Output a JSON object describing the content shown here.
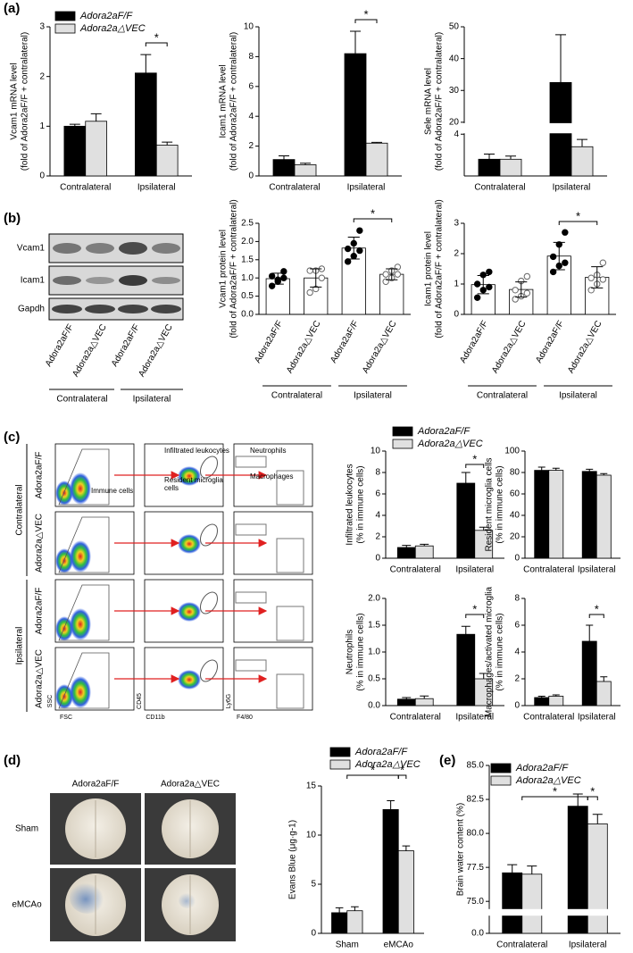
{
  "panel_labels": [
    "(a)",
    "(b)",
    "(c)",
    "(d)",
    "(e)"
  ],
  "chart_data": [
    {
      "type": "bar",
      "ylabel": [
        "Vcam1 mRNA level",
        "(fold of Adora2aF/F + contralateral)"
      ],
      "categories": [
        "Contralateral",
        "Ipsilateral"
      ],
      "series": [
        {
          "name": "Adora2aF/F",
          "color": "#000000",
          "values": [
            1.0,
            2.07
          ],
          "errors": [
            0.04,
            0.37
          ]
        },
        {
          "name": "Adora2a△VEC",
          "color": "#e0e0e0",
          "values": [
            1.1,
            0.62
          ],
          "errors": [
            0.15,
            0.06
          ]
        }
      ],
      "ylim": [
        0,
        3
      ],
      "yticks": [
        0,
        1,
        2,
        3
      ],
      "annotations": [
        "*"
      ],
      "legend": "top-left"
    },
    {
      "type": "bar",
      "ylabel": [
        "Icam1 mRNA level",
        "(fold of Adora2aF/F + contralateral)"
      ],
      "categories": [
        "Contralateral",
        "Ipsilateral"
      ],
      "series": [
        {
          "name": "Adora2aF/F",
          "color": "#000000",
          "values": [
            1.1,
            8.2
          ],
          "errors": [
            0.25,
            1.5
          ]
        },
        {
          "name": "Adora2a△VEC",
          "color": "#e0e0e0",
          "values": [
            0.75,
            2.2
          ],
          "errors": [
            0.1,
            0.05
          ]
        }
      ],
      "ylim": [
        0,
        10
      ],
      "yticks": [
        0,
        2,
        4,
        6,
        8,
        10
      ],
      "annotations": [
        "*"
      ]
    },
    {
      "type": "bar",
      "ylabel": [
        "Sele mRNA level",
        "(fold of Adora2aF/F + contralateral)"
      ],
      "categories": [
        "Contralateral",
        "Ipsilateral"
      ],
      "series": [
        {
          "name": "Adora2aF/F",
          "color": "#000000",
          "values": [
            1.6,
            32.5
          ],
          "errors": [
            0.5,
            15
          ]
        },
        {
          "name": "Adora2a△VEC",
          "color": "#e0e0e0",
          "values": [
            1.6,
            2.8
          ],
          "errors": [
            0.3,
            0.7
          ]
        }
      ],
      "ylim": [
        0,
        50
      ],
      "ybreak": [
        4,
        20
      ],
      "yticks": [
        4,
        20,
        30,
        40,
        50
      ]
    },
    {
      "type": "dotbar",
      "ylabel": [
        "Vcam1 protein level",
        "(fold of Adora2aF/F + contralateral)"
      ],
      "categories": [
        "Contralateral",
        "Ipsilateral"
      ],
      "bar_labels": [
        "Adora2aF/F",
        "Adora2a△VEC",
        "Adora2aF/F",
        "Adora2a△VEC"
      ],
      "bar_color": "#ffffff",
      "series": [
        {
          "name": "Adora2aF/F",
          "color": "#000000",
          "values": [
            0.98,
            1.82
          ],
          "errors": [
            0.15,
            0.3
          ],
          "points": [
            [
              0.78,
              0.95,
              1.0,
              1.05,
              0.9,
              1.18
            ],
            [
              1.45,
              1.6,
              1.75,
              1.8,
              1.95,
              2.3
            ]
          ]
        },
        {
          "name": "Adora2a△VEC",
          "color": "#ffffff",
          "values": [
            1.0,
            1.1
          ],
          "errors": [
            0.25,
            0.15
          ],
          "points": [
            [
              0.6,
              0.7,
              1.0,
              1.2,
              1.2,
              1.25
            ],
            [
              0.9,
              1.0,
              1.1,
              1.1,
              1.2,
              1.3
            ]
          ]
        }
      ],
      "ylim": [
        0,
        2.5
      ],
      "yticks": [
        {
          "value": 0,
          "label": "0.0"
        },
        {
          "value": 0.5,
          "label": "0.5"
        },
        {
          "value": 1,
          "label": "1.0"
        },
        {
          "value": 1.5,
          "label": "1.5"
        },
        {
          "value": 2,
          "label": "2.0"
        },
        {
          "value": 2.5,
          "label": "2.5"
        }
      ],
      "annotations": [
        "*"
      ]
    },
    {
      "type": "dotbar",
      "ylabel": [
        "Icam1 protein level",
        "(fold of Adora2aF/F + contralateral)"
      ],
      "categories": [
        "Contralateral",
        "Ipsilateral"
      ],
      "bar_labels": [
        "Adora2aF/F",
        "Adora2a△VEC",
        "Adora2aF/F",
        "Adora2a△VEC"
      ],
      "bar_color": "#ffffff",
      "series": [
        {
          "name": "Adora2aF/F",
          "color": "#000000",
          "values": [
            0.98,
            1.92
          ],
          "errors": [
            0.3,
            0.45
          ],
          "points": [
            [
              0.55,
              0.8,
              0.9,
              1.0,
              1.3,
              1.4
            ],
            [
              1.4,
              1.6,
              1.7,
              1.9,
              2.3,
              2.7
            ]
          ]
        },
        {
          "name": "Adora2a△VEC",
          "color": "#ffffff",
          "values": [
            0.82,
            1.22
          ],
          "errors": [
            0.25,
            0.35
          ],
          "points": [
            [
              0.5,
              0.6,
              0.7,
              0.8,
              1.1,
              1.25
            ],
            [
              0.8,
              1.0,
              1.15,
              1.2,
              1.3,
              1.7
            ]
          ]
        }
      ],
      "ylim": [
        0,
        3
      ],
      "yticks": [
        0,
        1,
        2,
        3
      ],
      "annotations": [
        "*"
      ]
    },
    {
      "type": "bar",
      "ylabel": [
        "Infiltrated leukocytes",
        "(% in immune cells)"
      ],
      "categories": [
        "Contralateral",
        "Ipsilateral"
      ],
      "series": [
        {
          "name": "Adora2aF/F",
          "color": "#000000",
          "values": [
            1.0,
            7.0
          ],
          "errors": [
            0.2,
            1.0
          ]
        },
        {
          "name": "Adora2a△VEC",
          "color": "#e0e0e0",
          "values": [
            1.15,
            2.6
          ],
          "errors": [
            0.15,
            0.3
          ]
        }
      ],
      "ylim": [
        0,
        10
      ],
      "yticks": [
        0,
        2,
        4,
        6,
        8,
        10
      ],
      "annotations": [
        "*"
      ],
      "legend": "top-left"
    },
    {
      "type": "bar",
      "ylabel": [
        "Resident microglia cells",
        "(% in immune cells)"
      ],
      "categories": [
        "Contralateral",
        "Ipsilateral"
      ],
      "series": [
        {
          "name": "Adora2aF/F",
          "color": "#000000",
          "values": [
            82,
            81
          ],
          "errors": [
            3,
            2
          ]
        },
        {
          "name": "Adora2a△VEC",
          "color": "#e0e0e0",
          "values": [
            82,
            77.5
          ],
          "errors": [
            2,
            1.5
          ]
        }
      ],
      "ylim": [
        0,
        100
      ],
      "yticks": [
        0,
        20,
        40,
        60,
        80,
        100
      ]
    },
    {
      "type": "bar",
      "ylabel": [
        "Neutrophils",
        "(% in immune cells)"
      ],
      "categories": [
        "Contralateral",
        "Ipsilateral"
      ],
      "series": [
        {
          "name": "Adora2aF/F",
          "color": "#000000",
          "values": [
            0.12,
            1.33
          ],
          "errors": [
            0.03,
            0.15
          ]
        },
        {
          "name": "Adora2a△VEC",
          "color": "#e0e0e0",
          "values": [
            0.13,
            0.5
          ],
          "errors": [
            0.05,
            0.1
          ]
        }
      ],
      "ylim": [
        0,
        2
      ],
      "yticks": [
        {
          "value": 0,
          "label": "0.0"
        },
        {
          "value": 0.5,
          "label": "0.5"
        },
        {
          "value": 1,
          "label": "1.0"
        },
        {
          "value": 1.5,
          "label": "1.5"
        },
        {
          "value": 2,
          "label": "2.0"
        }
      ],
      "annotations": [
        "*"
      ]
    },
    {
      "type": "bar",
      "ylabel": [
        "Macrophages/activated microglia",
        "(% in immune cells)"
      ],
      "categories": [
        "Contralateral",
        "Ipsilateral"
      ],
      "series": [
        {
          "name": "Adora2aF/F",
          "color": "#000000",
          "values": [
            0.6,
            4.8
          ],
          "errors": [
            0.1,
            1.2
          ]
        },
        {
          "name": "Adora2a△VEC",
          "color": "#e0e0e0",
          "values": [
            0.7,
            1.8
          ],
          "errors": [
            0.1,
            0.35
          ]
        }
      ],
      "ylim": [
        0,
        8
      ],
      "yticks": [
        0,
        2,
        4,
        6,
        8
      ],
      "annotations": [
        "*"
      ]
    },
    {
      "type": "bar",
      "ylabel": [
        "Evans Blue (μg·g-1)"
      ],
      "categories": [
        "Sham",
        "eMCAo"
      ],
      "series": [
        {
          "name": "Adora2aF/F",
          "color": "#000000",
          "values": [
            2.1,
            12.6
          ],
          "errors": [
            0.5,
            0.9
          ]
        },
        {
          "name": "Adora2a△VEC",
          "color": "#e0e0e0",
          "values": [
            2.3,
            8.4
          ],
          "errors": [
            0.4,
            0.5
          ]
        }
      ],
      "ylim": [
        0,
        15
      ],
      "yticks": [
        0,
        5,
        10,
        15
      ],
      "annotations": [
        "*",
        "*"
      ],
      "legend": "top-left"
    },
    {
      "type": "bar",
      "ylabel": [
        "Brain water content (%)"
      ],
      "categories": [
        "Contralateral",
        "Ipsilateral"
      ],
      "series": [
        {
          "name": "Adora2aF/F",
          "color": "#000000",
          "values": [
            77.1,
            82.0
          ],
          "errors": [
            0.6,
            0.9
          ]
        },
        {
          "name": "Adora2a△VEC",
          "color": "#e0e0e0",
          "values": [
            77.0,
            80.7
          ],
          "errors": [
            0.6,
            0.7
          ]
        }
      ],
      "ylim": [
        0,
        85
      ],
      "ybreak": [
        1,
        74.5
      ],
      "yticks": [
        {
          "value": 0,
          "label": "0.0"
        },
        {
          "value": 75,
          "label": "75.0"
        },
        {
          "value": 77.5,
          "label": "77.5"
        },
        {
          "value": 80,
          "label": "80.0"
        },
        {
          "value": 82.5,
          "label": "82.5"
        },
        {
          "value": 85,
          "label": "85.0"
        }
      ],
      "annotations": [
        "*",
        "*"
      ],
      "legend": "top-left"
    }
  ],
  "blot": {
    "rows": [
      "Vcam1",
      "Icam1",
      "Gapdh"
    ],
    "lanes": [
      "Adora2aF/F",
      "Adora2a△VEC",
      "Adora2aF/F",
      "Adora2a△VEC"
    ],
    "groups": [
      "Contralateral",
      "Ipsilateral"
    ]
  },
  "flow": {
    "row_groups": [
      "Contralateral",
      "Ipsilateral"
    ],
    "row_labels": [
      "Adora2aF/F",
      "Adora2a△VEC",
      "Adora2aF/F",
      "Adora2a△VEC"
    ],
    "gates": {
      "immune": "Immune cells",
      "leukocytes": "Infiltrated leukocytes",
      "microglia": [
        "Resident microglia",
        "cells"
      ],
      "neutrophils": "Neutrophils",
      "macrophages": "Macrophages"
    },
    "axes": [
      [
        "SSC",
        "FSC"
      ],
      [
        "CD45",
        "CD11b"
      ],
      [
        "Ly6G",
        "F4/80"
      ]
    ]
  },
  "brain": {
    "columns": [
      "Adora2aF/F",
      "Adora2a△VEC"
    ],
    "rows": [
      "Sham",
      "eMCAo"
    ]
  }
}
